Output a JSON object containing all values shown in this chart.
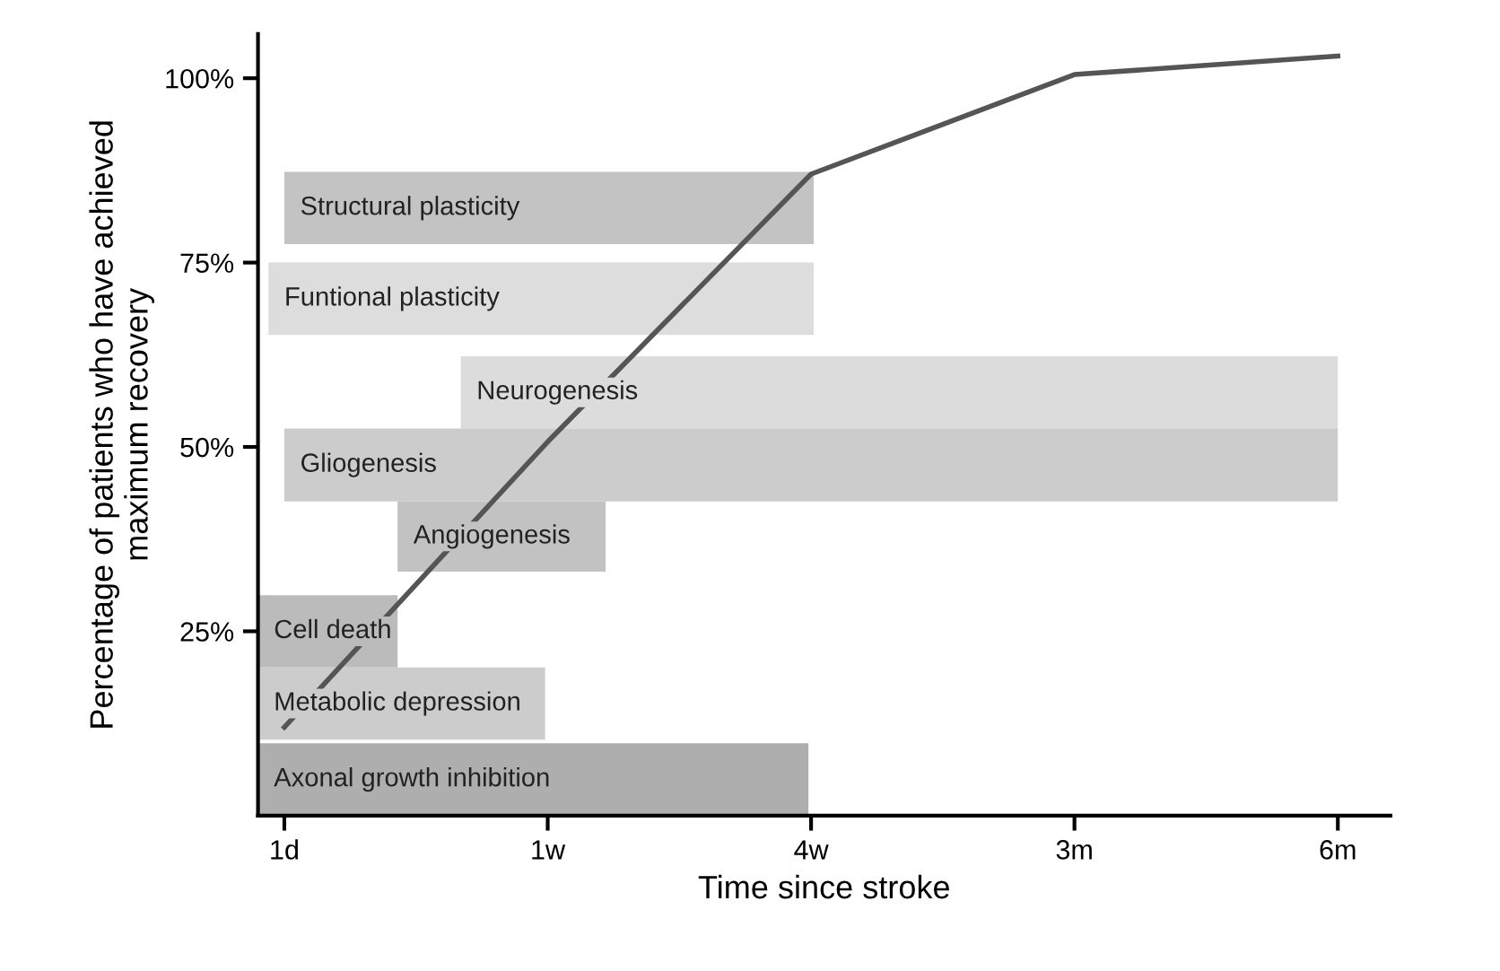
{
  "chart_data": {
    "type": "line",
    "xlabel": "Time since stroke",
    "ylabel": "Percentage of patients who have achieved\nmaximum recovery",
    "categories": [
      "1d",
      "1w",
      "4w",
      "3m",
      "6m"
    ],
    "ylim": [
      0,
      106
    ],
    "yticks": [
      {
        "value": 25,
        "label": "25%"
      },
      {
        "value": 50,
        "label": "50%"
      },
      {
        "value": 75,
        "label": "75%"
      },
      {
        "value": 100,
        "label": "100%"
      }
    ],
    "grid": false,
    "legend": false,
    "bands": [
      {
        "axis": "y",
        "from": 77.5,
        "to": 87.3,
        "label": "Structural plasticity",
        "color": "#c3c3c3"
      },
      {
        "axis": "y",
        "from": 65.2,
        "to": 75,
        "label": "Funtional plasticity",
        "color": "#dddddd"
      },
      {
        "axis": "y",
        "from": 52.5,
        "to": 62.3,
        "label": "Neurogenesis",
        "color": "#dcdcdc"
      },
      {
        "axis": "y",
        "from": 42.6,
        "to": 52.5,
        "label": "Gliogenesis",
        "color": "#cccccc"
      },
      {
        "axis": "y",
        "from": 33.1,
        "to": 42.6,
        "label": "Angiogenesis",
        "color": "#c2c2c2"
      },
      {
        "axis": "y",
        "from": 20.1,
        "to": 29.9,
        "label": "Cell death",
        "color": "#bbbbbb"
      },
      {
        "axis": "y",
        "from": 10.3,
        "to": 20.1,
        "label": "Metabolic depression",
        "color": "#cccccc"
      },
      {
        "axis": "y",
        "from": 0,
        "to": 9.8,
        "label": "Axonal growth inhibition",
        "color": "#aeaeae"
      }
    ],
    "series": [
      {
        "color": "#555555",
        "values": [
          12,
          50.7,
          87,
          100.5,
          103
        ]
      }
    ]
  }
}
